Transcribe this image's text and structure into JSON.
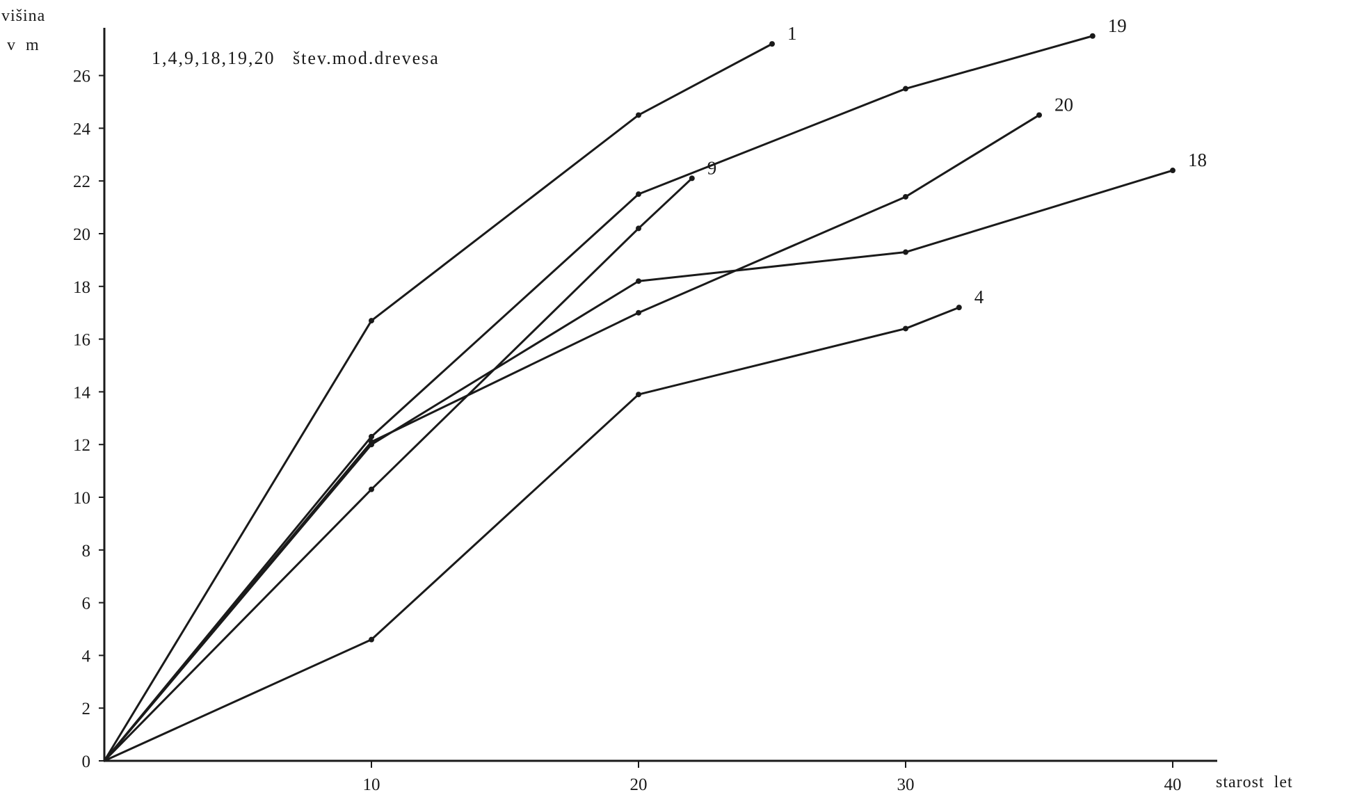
{
  "chart_data": {
    "type": "line",
    "title": "",
    "annotation": "1,4,9,18,19,20   štev.mod.drevesa",
    "ylabel_line1": "višina",
    "ylabel_line2": "v  m",
    "xlabel": "starost  let",
    "xlim": [
      0,
      42
    ],
    "ylim": [
      0,
      28
    ],
    "x_ticks": [
      10,
      20,
      30,
      40
    ],
    "y_ticks": [
      0,
      2,
      4,
      6,
      8,
      10,
      12,
      14,
      16,
      18,
      20,
      22,
      24,
      26
    ],
    "grid": false,
    "line_color": "#1a1a1a",
    "series": [
      {
        "name": "1",
        "x": [
          0,
          10,
          20,
          25
        ],
        "y": [
          0,
          16.7,
          24.5,
          27.2
        ]
      },
      {
        "name": "4",
        "x": [
          0,
          10,
          20,
          30,
          32
        ],
        "y": [
          0,
          4.6,
          13.9,
          16.4,
          17.2
        ]
      },
      {
        "name": "9",
        "x": [
          0,
          10,
          20,
          22
        ],
        "y": [
          0,
          10.3,
          20.2,
          22.1
        ]
      },
      {
        "name": "18",
        "x": [
          0,
          10,
          20,
          30,
          40
        ],
        "y": [
          0,
          12.0,
          18.2,
          19.3,
          22.4
        ]
      },
      {
        "name": "19",
        "x": [
          0,
          10,
          20,
          30,
          37
        ],
        "y": [
          0,
          12.3,
          21.5,
          25.5,
          27.5
        ]
      },
      {
        "name": "20",
        "x": [
          0,
          10,
          20,
          30,
          35
        ],
        "y": [
          0,
          12.1,
          17.0,
          21.4,
          24.5
        ]
      }
    ]
  }
}
